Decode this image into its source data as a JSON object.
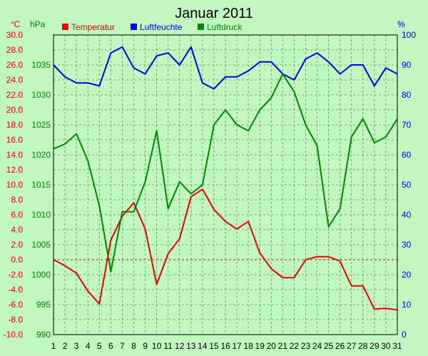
{
  "chart_data": {
    "type": "line",
    "title": "Januar 2011",
    "unit_left_temp": "°C",
    "unit_left_press": "hPa",
    "unit_right": "%",
    "legend": [
      {
        "label": "Temperatur",
        "color": "#ee0000"
      },
      {
        "label": "Luftfeuchte",
        "color": "#0000ee"
      },
      {
        "label": "Luftdruck",
        "color": "#008800"
      }
    ],
    "x": [
      1,
      2,
      3,
      4,
      5,
      6,
      7,
      8,
      9,
      10,
      11,
      12,
      13,
      14,
      15,
      16,
      17,
      18,
      19,
      20,
      21,
      22,
      23,
      24,
      25,
      26,
      27,
      28,
      29,
      30,
      31
    ],
    "x_tick_labels": [
      "1",
      "2",
      "3",
      "4",
      "5",
      "6",
      "7",
      "8",
      "9",
      "10",
      "11",
      "12",
      "13",
      "14",
      "15",
      "16",
      "17",
      "18",
      "19",
      "20",
      "21",
      "22",
      "23",
      "24",
      "25",
      "26",
      "27",
      "28",
      "29",
      "30",
      "31"
    ],
    "temp_axis": {
      "range": [
        -10,
        30
      ],
      "ticks": [
        "-10.0",
        "-8.0",
        "-6.0",
        "-4.0",
        "-2.0",
        "0.0",
        "2.0",
        "4.0",
        "6.0",
        "8.0",
        "10.0",
        "12.0",
        "14.0",
        "16.0",
        "18.0",
        "20.0",
        "22.0",
        "24.0",
        "26.0",
        "28.0",
        "30.0"
      ]
    },
    "pressure_axis": {
      "range": [
        990,
        1040
      ],
      "ticks": [
        "990",
        "995",
        "1000",
        "1005",
        "1010",
        "1015",
        "1020",
        "1025",
        "1030",
        "1035"
      ]
    },
    "humidity_axis": {
      "range": [
        0,
        100
      ],
      "ticks": [
        "0",
        "10",
        "20",
        "30",
        "40",
        "50",
        "60",
        "70",
        "80",
        "90",
        "100"
      ]
    },
    "grid": true,
    "zero_line": 0,
    "series": [
      {
        "name": "Temperatur",
        "axis": "temp",
        "color": "#ee0000",
        "values": [
          0.0,
          -0.8,
          -1.8,
          -4.2,
          -5.9,
          2.6,
          5.8,
          7.6,
          4.1,
          -3.3,
          0.8,
          2.8,
          8.4,
          9.4,
          6.7,
          5.1,
          4.1,
          5.1,
          0.9,
          -1.2,
          -2.4,
          -2.4,
          0.0,
          0.4,
          0.4,
          -0.2,
          -3.5,
          -3.5,
          -6.6,
          -6.5,
          -6.7
        ]
      },
      {
        "name": "Luftfeuchte",
        "axis": "humidity",
        "color": "#0000ee",
        "values": [
          90,
          86,
          84,
          84,
          83,
          94,
          96,
          89,
          87,
          93,
          94,
          90,
          96,
          84,
          82,
          86,
          86,
          88,
          91,
          91,
          87,
          85,
          92,
          94,
          91,
          87,
          90,
          90,
          83,
          89,
          87
        ]
      },
      {
        "name": "Luftdruck",
        "axis": "pressure",
        "color": "#008800",
        "values": [
          1021.0,
          1021.8,
          1023.5,
          1019.0,
          1011.5,
          1000.5,
          1010.5,
          1010.5,
          1015.5,
          1024.0,
          1011.0,
          1015.5,
          1013.5,
          1015.0,
          1025.0,
          1027.5,
          1025.0,
          1024.0,
          1027.5,
          1029.5,
          1033.5,
          1030.5,
          1025.0,
          1021.5,
          1008.0,
          1011.0,
          1023.0,
          1026.0,
          1022.0,
          1023.0,
          1026.0
        ]
      }
    ]
  }
}
